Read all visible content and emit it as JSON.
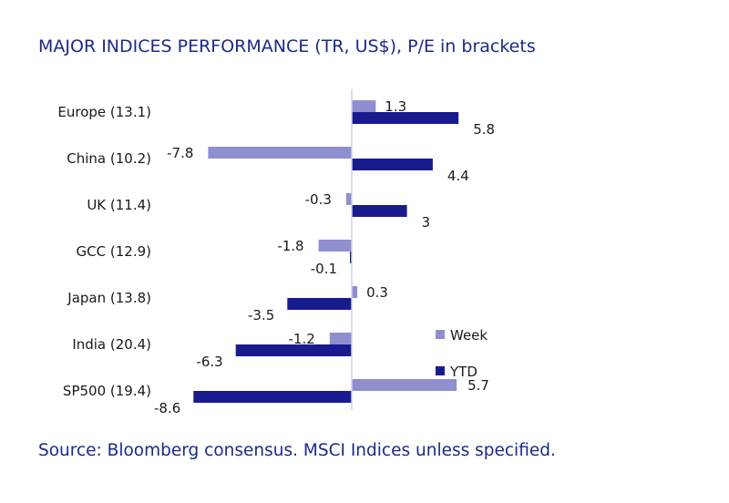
{
  "chart_data": {
    "type": "bar",
    "orientation": "horizontal",
    "title": "MAJOR INDICES PERFORMANCE (TR, US$), P/E in brackets",
    "source": "Source: Bloomberg consensus. MSCI Indices unless specified.",
    "categories": [
      "Europe (13.1)",
      "China (10.2)",
      "UK (11.4)",
      "GCC (12.9)",
      "Japan (13.8)",
      "India (20.4)",
      "SP500 (19.4)"
    ],
    "series": [
      {
        "name": "Week",
        "color": "#8f8fcf",
        "values": [
          1.3,
          -7.8,
          -0.3,
          -1.8,
          0.3,
          -1.2,
          5.7
        ]
      },
      {
        "name": "YTD",
        "color": "#1a1a8f",
        "values": [
          5.8,
          4.4,
          3.0,
          -0.1,
          -3.5,
          -6.3,
          -8.6
        ]
      }
    ],
    "legend_position": "right",
    "grid": false,
    "xlim": [
      -10,
      8
    ]
  }
}
